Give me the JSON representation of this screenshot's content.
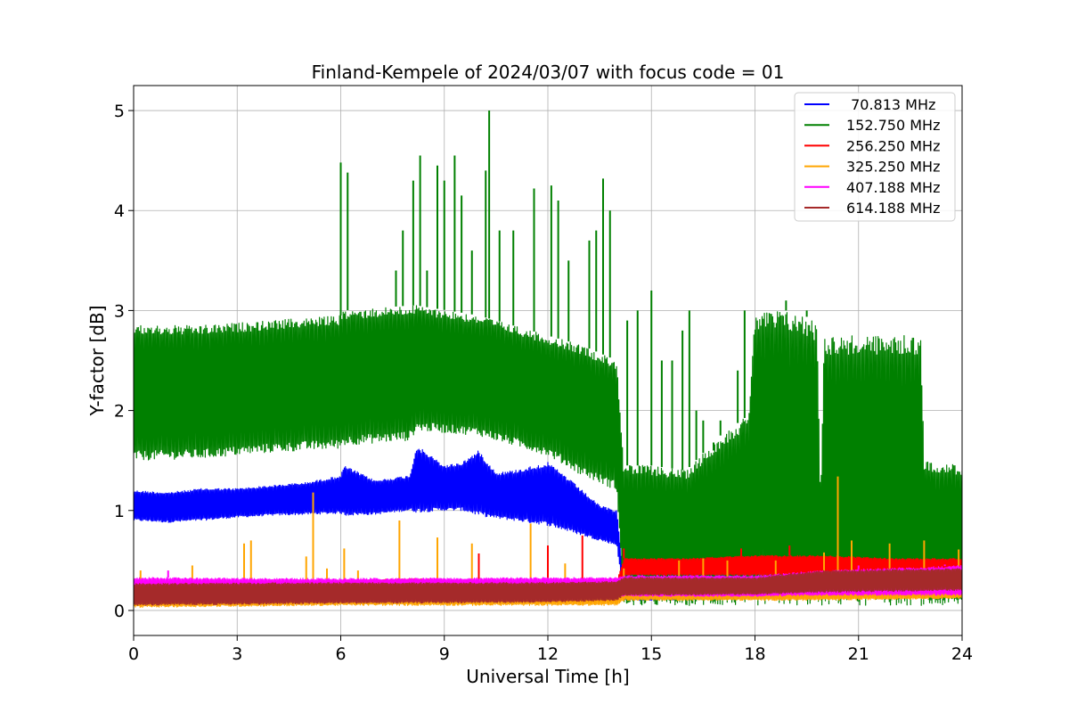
{
  "chart_data": {
    "type": "line",
    "title": "Finland-Kempele of 2024/03/07 with focus code = 01",
    "xlabel": "Universal Time [h]",
    "ylabel": "Y-factor [dB]",
    "xlim": [
      0,
      24
    ],
    "ylim": [
      -0.25,
      5.25
    ],
    "xticks": [
      0,
      3,
      6,
      9,
      12,
      15,
      18,
      21,
      24
    ],
    "yticks": [
      0,
      1,
      2,
      3,
      4,
      5
    ],
    "grid": true,
    "legend_position": "top-right",
    "series": [
      {
        "name": " 70.813 MHz",
        "color": "#0000ff",
        "envelope": {
          "x": [
            0,
            1,
            2,
            3,
            4,
            5,
            6,
            6.1,
            7,
            8,
            8.2,
            9,
            9.5,
            10,
            10.5,
            11,
            12,
            12.5,
            13,
            13.5,
            14,
            14.2,
            15,
            24
          ],
          "lower": [
            0.9,
            0.88,
            0.9,
            0.93,
            0.95,
            0.96,
            0.97,
            0.95,
            0.96,
            1.0,
            0.98,
            1.0,
            1.0,
            0.95,
            0.92,
            0.9,
            0.85,
            0.8,
            0.75,
            0.7,
            0.65,
            0.1,
            0.1,
            0.15
          ],
          "upper": [
            1.2,
            1.18,
            1.22,
            1.22,
            1.25,
            1.28,
            1.35,
            1.45,
            1.3,
            1.35,
            1.65,
            1.45,
            1.48,
            1.6,
            1.38,
            1.4,
            1.48,
            1.35,
            1.2,
            1.05,
            1.0,
            0.3,
            0.3,
            0.35
          ]
        },
        "spikes": [
          [
            15.0,
            0.78
          ],
          [
            19.8,
            0.78
          ]
        ]
      },
      {
        "name": "152.750 MHz",
        "color": "#008000",
        "envelope": {
          "x": [
            0,
            2,
            4,
            6,
            6.05,
            8,
            8.2,
            10,
            12,
            13,
            14,
            14.2,
            15,
            16,
            17,
            17.8,
            18,
            19,
            19.8,
            19.9,
            20,
            22,
            22.8,
            22.9,
            24
          ],
          "lower": [
            1.5,
            1.52,
            1.58,
            1.62,
            1.65,
            1.7,
            1.8,
            1.75,
            1.55,
            1.35,
            1.2,
            0.05,
            0.05,
            0.05,
            0.05,
            0.05,
            0.05,
            0.05,
            0.05,
            0.05,
            0.05,
            0.05,
            0.05,
            0.05,
            0.05
          ],
          "upper": [
            2.85,
            2.85,
            2.9,
            2.95,
            3.0,
            3.05,
            3.05,
            2.95,
            2.75,
            2.65,
            2.5,
            1.45,
            1.45,
            1.4,
            1.75,
            1.95,
            3.0,
            3.0,
            2.9,
            1.1,
            2.75,
            2.75,
            2.75,
            1.5,
            1.45
          ]
        },
        "spikes": [
          [
            6.0,
            4.48
          ],
          [
            6.2,
            4.38
          ],
          [
            7.6,
            3.4
          ],
          [
            7.8,
            3.8
          ],
          [
            8.1,
            4.3
          ],
          [
            8.3,
            4.55
          ],
          [
            8.5,
            3.4
          ],
          [
            8.8,
            4.45
          ],
          [
            9.0,
            4.3
          ],
          [
            9.3,
            4.55
          ],
          [
            9.5,
            4.15
          ],
          [
            9.8,
            3.6
          ],
          [
            10.2,
            4.4
          ],
          [
            10.3,
            5.0
          ],
          [
            10.6,
            3.8
          ],
          [
            11.0,
            3.8
          ],
          [
            11.6,
            4.22
          ],
          [
            12.1,
            4.25
          ],
          [
            12.3,
            4.1
          ],
          [
            12.6,
            3.5
          ],
          [
            13.2,
            3.7
          ],
          [
            13.4,
            3.8
          ],
          [
            13.6,
            4.32
          ],
          [
            13.8,
            4.0
          ],
          [
            14.3,
            2.9
          ],
          [
            14.6,
            3.0
          ],
          [
            15.0,
            3.2
          ],
          [
            15.3,
            2.5
          ],
          [
            15.6,
            2.5
          ],
          [
            15.9,
            2.8
          ],
          [
            16.1,
            3.0
          ],
          [
            16.3,
            2.0
          ],
          [
            16.5,
            1.9
          ],
          [
            16.8,
            1.6
          ],
          [
            17.0,
            1.9
          ],
          [
            17.2,
            1.8
          ],
          [
            17.5,
            2.4
          ],
          [
            17.7,
            3.0
          ],
          [
            18.9,
            3.1
          ],
          [
            19.5,
            3.0
          ]
        ]
      },
      {
        "name": "256.250 MHz",
        "color": "#ff0000",
        "envelope": {
          "x": [
            0,
            6,
            8,
            10,
            12,
            14,
            14.2,
            16,
            18,
            20,
            22,
            24
          ],
          "lower": [
            0.13,
            0.14,
            0.14,
            0.14,
            0.14,
            0.15,
            0.35,
            0.35,
            0.35,
            0.35,
            0.35,
            0.35
          ],
          "upper": [
            0.28,
            0.3,
            0.32,
            0.3,
            0.3,
            0.3,
            0.52,
            0.52,
            0.55,
            0.55,
            0.52,
            0.52
          ]
        },
        "spikes": [
          [
            10.0,
            0.57
          ],
          [
            12.0,
            0.65
          ],
          [
            13.0,
            0.75
          ],
          [
            14.2,
            0.62
          ],
          [
            17.6,
            0.62
          ],
          [
            19.0,
            0.65
          ]
        ]
      },
      {
        "name": "325.250 MHz",
        "color": "#ffa500",
        "envelope": {
          "x": [
            0,
            6,
            12,
            14,
            14.2,
            18,
            20,
            24
          ],
          "lower": [
            0.03,
            0.05,
            0.05,
            0.05,
            0.1,
            0.1,
            0.1,
            0.12
          ],
          "upper": [
            0.28,
            0.28,
            0.3,
            0.3,
            0.3,
            0.3,
            0.32,
            0.35
          ]
        },
        "spikes": [
          [
            0.2,
            0.4
          ],
          [
            1.7,
            0.45
          ],
          [
            3.2,
            0.67
          ],
          [
            3.4,
            0.7
          ],
          [
            5.0,
            0.54
          ],
          [
            5.2,
            1.18
          ],
          [
            5.6,
            0.42
          ],
          [
            6.1,
            0.62
          ],
          [
            6.5,
            0.4
          ],
          [
            7.7,
            0.9
          ],
          [
            8.8,
            0.73
          ],
          [
            9.8,
            0.67
          ],
          [
            11.5,
            0.87
          ],
          [
            12.5,
            0.47
          ],
          [
            14.2,
            0.42
          ],
          [
            15.8,
            0.5
          ],
          [
            16.5,
            0.52
          ],
          [
            17.2,
            0.5
          ],
          [
            18.6,
            0.5
          ],
          [
            20.0,
            0.58
          ],
          [
            20.4,
            1.34
          ],
          [
            20.8,
            0.7
          ],
          [
            21.9,
            0.67
          ],
          [
            22.9,
            0.7
          ],
          [
            23.9,
            0.61
          ]
        ]
      },
      {
        "name": "407.188 MHz",
        "color": "#ff00ff",
        "envelope": {
          "x": [
            0,
            6,
            12,
            14,
            14.2,
            18,
            20,
            24
          ],
          "lower": [
            0.1,
            0.1,
            0.1,
            0.12,
            0.14,
            0.14,
            0.15,
            0.15
          ],
          "upper": [
            0.33,
            0.32,
            0.33,
            0.33,
            0.35,
            0.35,
            0.4,
            0.45
          ]
        },
        "spikes": [
          [
            1.0,
            0.4
          ],
          [
            21.0,
            0.45
          ],
          [
            23.5,
            0.46
          ]
        ]
      },
      {
        "name": "614.188 MHz",
        "color": "#a52a2a",
        "envelope": {
          "x": [
            0,
            6,
            12,
            14,
            14.2,
            18,
            20,
            24
          ],
          "lower": [
            0.05,
            0.07,
            0.08,
            0.1,
            0.15,
            0.16,
            0.18,
            0.2
          ],
          "upper": [
            0.27,
            0.28,
            0.28,
            0.29,
            0.33,
            0.33,
            0.4,
            0.42
          ]
        },
        "spikes": []
      }
    ]
  }
}
